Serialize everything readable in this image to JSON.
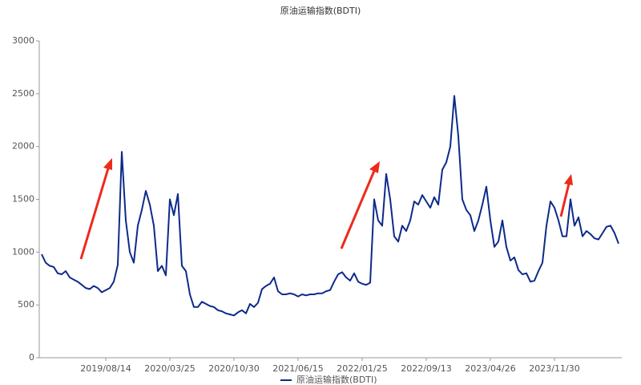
{
  "chart_data": {
    "type": "line",
    "title": "原油运输指数(BDTI)",
    "categories": [
      null,
      null,
      null,
      null,
      null,
      null,
      null,
      null,
      null,
      null,
      null,
      null,
      null,
      null,
      null,
      null,
      "2019/08/14",
      null,
      null,
      null,
      null,
      null,
      null,
      null,
      null,
      null,
      null,
      null,
      null,
      null,
      null,
      null,
      "2020/03/25",
      null,
      null,
      null,
      null,
      null,
      null,
      null,
      null,
      null,
      null,
      null,
      null,
      null,
      null,
      null,
      "2020/10/30",
      null,
      null,
      null,
      null,
      null,
      null,
      null,
      null,
      null,
      null,
      null,
      null,
      null,
      null,
      null,
      "2021/06/15",
      null,
      null,
      null,
      null,
      null,
      null,
      null,
      null,
      null,
      null,
      null,
      null,
      null,
      null,
      null,
      "2022/01/25",
      null,
      null,
      null,
      null,
      null,
      null,
      null,
      null,
      null,
      null,
      null,
      null,
      null,
      null,
      null,
      "2022/09/13",
      null,
      null,
      null,
      null,
      null,
      null,
      null,
      null,
      null,
      null,
      null,
      null,
      null,
      null,
      null,
      "2023/04/26",
      null,
      null,
      null,
      null,
      null,
      null,
      null,
      null,
      null,
      null,
      null,
      null,
      null,
      null,
      null,
      "2023/11/30",
      null,
      null,
      null,
      null,
      null,
      null,
      null,
      null,
      null,
      null,
      null,
      null,
      null,
      null,
      null,
      null
    ],
    "series": [
      {
        "name": "原油运输指数(BDTI)",
        "color": "#0d2a8a",
        "values": [
          980,
          900,
          870,
          860,
          800,
          790,
          820,
          760,
          740,
          720,
          690,
          660,
          650,
          680,
          660,
          620,
          640,
          660,
          720,
          880,
          1950,
          1300,
          1000,
          900,
          1250,
          1400,
          1580,
          1450,
          1250,
          820,
          870,
          780,
          1500,
          1350,
          1550,
          870,
          820,
          600,
          480,
          480,
          530,
          510,
          490,
          480,
          450,
          440,
          420,
          410,
          400,
          430,
          450,
          420,
          510,
          480,
          520,
          650,
          680,
          700,
          760,
          630,
          600,
          600,
          610,
          600,
          580,
          600,
          590,
          600,
          600,
          610,
          610,
          630,
          640,
          720,
          790,
          810,
          760,
          730,
          800,
          720,
          700,
          690,
          710,
          1500,
          1300,
          1250,
          1740,
          1500,
          1150,
          1100,
          1250,
          1200,
          1300,
          1480,
          1450,
          1540,
          1480,
          1420,
          1520,
          1450,
          1780,
          1850,
          2000,
          2480,
          2100,
          1500,
          1400,
          1350,
          1200,
          1300,
          1450,
          1620,
          1300,
          1050,
          1100,
          1300,
          1050,
          920,
          950,
          830,
          790,
          800,
          720,
          730,
          820,
          900,
          1250,
          1480,
          1420,
          1300,
          1150,
          1150,
          1500,
          1250,
          1330,
          1150,
          1200,
          1170,
          1130,
          1120,
          1180,
          1240,
          1250,
          1180,
          1080
        ]
      }
    ],
    "ylim": [
      0,
      3000
    ],
    "yticks": [
      0,
      500,
      1000,
      1500,
      2000,
      2500,
      3000
    ],
    "grid": false
  }
}
